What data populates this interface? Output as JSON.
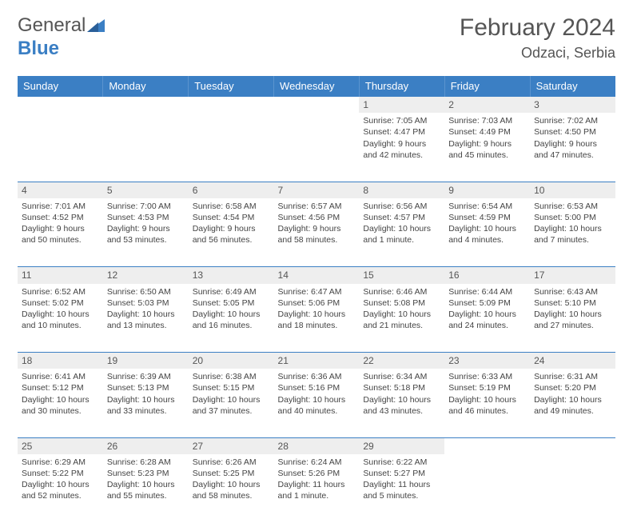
{
  "brand": {
    "part1": "General",
    "part2": "Blue"
  },
  "title": "February 2024",
  "location": "Odzaci, Serbia",
  "colors": {
    "header_bg": "#3b7fc4",
    "header_text": "#ffffff",
    "daynum_bg": "#eeeeee",
    "border": "#3b7fc4",
    "text": "#444444"
  },
  "day_headers": [
    "Sunday",
    "Monday",
    "Tuesday",
    "Wednesday",
    "Thursday",
    "Friday",
    "Saturday"
  ],
  "weeks": [
    {
      "nums": [
        "",
        "",
        "",
        "",
        "1",
        "2",
        "3"
      ],
      "cells": [
        null,
        null,
        null,
        null,
        {
          "sunrise": "Sunrise: 7:05 AM",
          "sunset": "Sunset: 4:47 PM",
          "day1": "Daylight: 9 hours",
          "day2": "and 42 minutes."
        },
        {
          "sunrise": "Sunrise: 7:03 AM",
          "sunset": "Sunset: 4:49 PM",
          "day1": "Daylight: 9 hours",
          "day2": "and 45 minutes."
        },
        {
          "sunrise": "Sunrise: 7:02 AM",
          "sunset": "Sunset: 4:50 PM",
          "day1": "Daylight: 9 hours",
          "day2": "and 47 minutes."
        }
      ]
    },
    {
      "nums": [
        "4",
        "5",
        "6",
        "7",
        "8",
        "9",
        "10"
      ],
      "cells": [
        {
          "sunrise": "Sunrise: 7:01 AM",
          "sunset": "Sunset: 4:52 PM",
          "day1": "Daylight: 9 hours",
          "day2": "and 50 minutes."
        },
        {
          "sunrise": "Sunrise: 7:00 AM",
          "sunset": "Sunset: 4:53 PM",
          "day1": "Daylight: 9 hours",
          "day2": "and 53 minutes."
        },
        {
          "sunrise": "Sunrise: 6:58 AM",
          "sunset": "Sunset: 4:54 PM",
          "day1": "Daylight: 9 hours",
          "day2": "and 56 minutes."
        },
        {
          "sunrise": "Sunrise: 6:57 AM",
          "sunset": "Sunset: 4:56 PM",
          "day1": "Daylight: 9 hours",
          "day2": "and 58 minutes."
        },
        {
          "sunrise": "Sunrise: 6:56 AM",
          "sunset": "Sunset: 4:57 PM",
          "day1": "Daylight: 10 hours",
          "day2": "and 1 minute."
        },
        {
          "sunrise": "Sunrise: 6:54 AM",
          "sunset": "Sunset: 4:59 PM",
          "day1": "Daylight: 10 hours",
          "day2": "and 4 minutes."
        },
        {
          "sunrise": "Sunrise: 6:53 AM",
          "sunset": "Sunset: 5:00 PM",
          "day1": "Daylight: 10 hours",
          "day2": "and 7 minutes."
        }
      ]
    },
    {
      "nums": [
        "11",
        "12",
        "13",
        "14",
        "15",
        "16",
        "17"
      ],
      "cells": [
        {
          "sunrise": "Sunrise: 6:52 AM",
          "sunset": "Sunset: 5:02 PM",
          "day1": "Daylight: 10 hours",
          "day2": "and 10 minutes."
        },
        {
          "sunrise": "Sunrise: 6:50 AM",
          "sunset": "Sunset: 5:03 PM",
          "day1": "Daylight: 10 hours",
          "day2": "and 13 minutes."
        },
        {
          "sunrise": "Sunrise: 6:49 AM",
          "sunset": "Sunset: 5:05 PM",
          "day1": "Daylight: 10 hours",
          "day2": "and 16 minutes."
        },
        {
          "sunrise": "Sunrise: 6:47 AM",
          "sunset": "Sunset: 5:06 PM",
          "day1": "Daylight: 10 hours",
          "day2": "and 18 minutes."
        },
        {
          "sunrise": "Sunrise: 6:46 AM",
          "sunset": "Sunset: 5:08 PM",
          "day1": "Daylight: 10 hours",
          "day2": "and 21 minutes."
        },
        {
          "sunrise": "Sunrise: 6:44 AM",
          "sunset": "Sunset: 5:09 PM",
          "day1": "Daylight: 10 hours",
          "day2": "and 24 minutes."
        },
        {
          "sunrise": "Sunrise: 6:43 AM",
          "sunset": "Sunset: 5:10 PM",
          "day1": "Daylight: 10 hours",
          "day2": "and 27 minutes."
        }
      ]
    },
    {
      "nums": [
        "18",
        "19",
        "20",
        "21",
        "22",
        "23",
        "24"
      ],
      "cells": [
        {
          "sunrise": "Sunrise: 6:41 AM",
          "sunset": "Sunset: 5:12 PM",
          "day1": "Daylight: 10 hours",
          "day2": "and 30 minutes."
        },
        {
          "sunrise": "Sunrise: 6:39 AM",
          "sunset": "Sunset: 5:13 PM",
          "day1": "Daylight: 10 hours",
          "day2": "and 33 minutes."
        },
        {
          "sunrise": "Sunrise: 6:38 AM",
          "sunset": "Sunset: 5:15 PM",
          "day1": "Daylight: 10 hours",
          "day2": "and 37 minutes."
        },
        {
          "sunrise": "Sunrise: 6:36 AM",
          "sunset": "Sunset: 5:16 PM",
          "day1": "Daylight: 10 hours",
          "day2": "and 40 minutes."
        },
        {
          "sunrise": "Sunrise: 6:34 AM",
          "sunset": "Sunset: 5:18 PM",
          "day1": "Daylight: 10 hours",
          "day2": "and 43 minutes."
        },
        {
          "sunrise": "Sunrise: 6:33 AM",
          "sunset": "Sunset: 5:19 PM",
          "day1": "Daylight: 10 hours",
          "day2": "and 46 minutes."
        },
        {
          "sunrise": "Sunrise: 6:31 AM",
          "sunset": "Sunset: 5:20 PM",
          "day1": "Daylight: 10 hours",
          "day2": "and 49 minutes."
        }
      ]
    },
    {
      "nums": [
        "25",
        "26",
        "27",
        "28",
        "29",
        "",
        ""
      ],
      "cells": [
        {
          "sunrise": "Sunrise: 6:29 AM",
          "sunset": "Sunset: 5:22 PM",
          "day1": "Daylight: 10 hours",
          "day2": "and 52 minutes."
        },
        {
          "sunrise": "Sunrise: 6:28 AM",
          "sunset": "Sunset: 5:23 PM",
          "day1": "Daylight: 10 hours",
          "day2": "and 55 minutes."
        },
        {
          "sunrise": "Sunrise: 6:26 AM",
          "sunset": "Sunset: 5:25 PM",
          "day1": "Daylight: 10 hours",
          "day2": "and 58 minutes."
        },
        {
          "sunrise": "Sunrise: 6:24 AM",
          "sunset": "Sunset: 5:26 PM",
          "day1": "Daylight: 11 hours",
          "day2": "and 1 minute."
        },
        {
          "sunrise": "Sunrise: 6:22 AM",
          "sunset": "Sunset: 5:27 PM",
          "day1": "Daylight: 11 hours",
          "day2": "and 5 minutes."
        },
        null,
        null
      ]
    }
  ]
}
